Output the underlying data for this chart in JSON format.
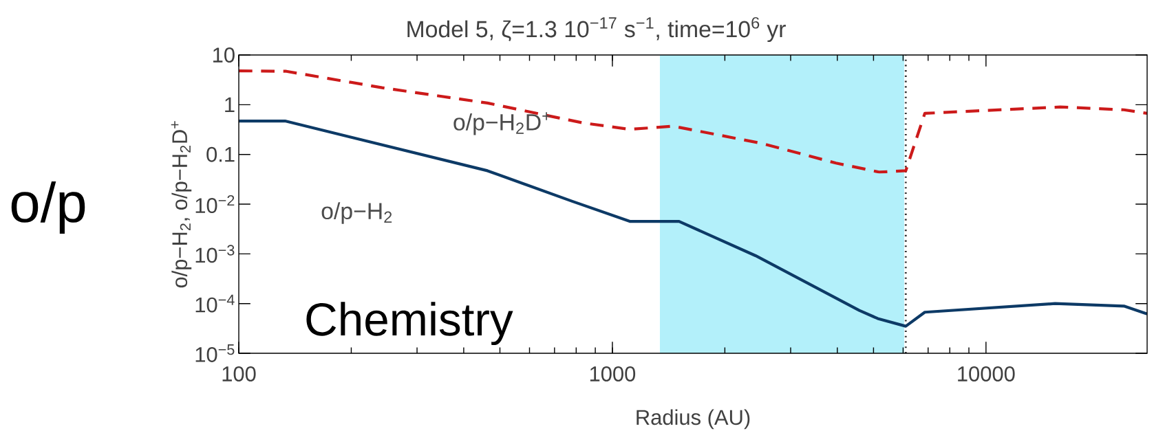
{
  "chart_data": {
    "type": "line",
    "title": "Model 5, ζ=1.3 10$^{−17}$ s$^{−1}$, time=10$^{6}$ yr",
    "xlabel": "Radius (AU)",
    "ylabel": "o/p−H$_{2}$, o/p−H$_{2}$D$^{+}$",
    "log": "xy",
    "xlim": [
      100,
      27000
    ],
    "ylim": [
      1e-05,
      10
    ],
    "xticks": [
      100,
      1000,
      10000
    ],
    "yticks": [
      {
        "value": 10,
        "label": "10"
      },
      {
        "value": 1,
        "label": "1"
      },
      {
        "value": 0.1,
        "label": "0.1"
      },
      {
        "value": 0.01,
        "label": "10$^{−2}$"
      },
      {
        "value": 0.001,
        "label": "10$^{−3}$"
      },
      {
        "value": 0.0001,
        "label": "10$^{−4}$"
      },
      {
        "value": 1e-05,
        "label": "10$^{−5}$"
      }
    ],
    "grid": false,
    "series": [
      {
        "name": "o/p−H$_{2}$",
        "color": "#0d3a66",
        "line_style": "solid",
        "x": [
          100,
          133,
          463,
          781,
          1113,
          1508,
          2416,
          4580,
          5130,
          6100,
          6860,
          15300,
          23400,
          27000
        ],
        "values": [
          0.47,
          0.47,
          0.047,
          0.0114,
          0.0045,
          0.0045,
          0.00092,
          7.3e-05,
          5e-05,
          3.5e-05,
          6.7e-05,
          0.0001,
          8.9e-05,
          6.2e-05
        ]
      },
      {
        "name": "o/p−H$_{2}$D$^{+}$",
        "color": "#cc1a1a",
        "line_style": "dashed",
        "x": [
          100,
          134,
          242,
          463,
          834,
          1113,
          1456,
          2518,
          3966,
          5190,
          6100,
          6860,
          15800,
          23400,
          27000
        ],
        "values": [
          4.8,
          4.7,
          2.2,
          1.08,
          0.43,
          0.32,
          0.37,
          0.166,
          0.067,
          0.044,
          0.047,
          0.67,
          0.9,
          0.79,
          0.67
        ]
      }
    ],
    "bands": [
      {
        "axis": "x",
        "from": 1340,
        "to": 6040,
        "color": "#b3f0fa"
      }
    ],
    "ref_lines": [
      {
        "axis": "x",
        "value": 6100,
        "color": "#333333",
        "line_style": "dotted"
      }
    ],
    "annotations": [
      "o/p",
      "Chemistry"
    ]
  }
}
